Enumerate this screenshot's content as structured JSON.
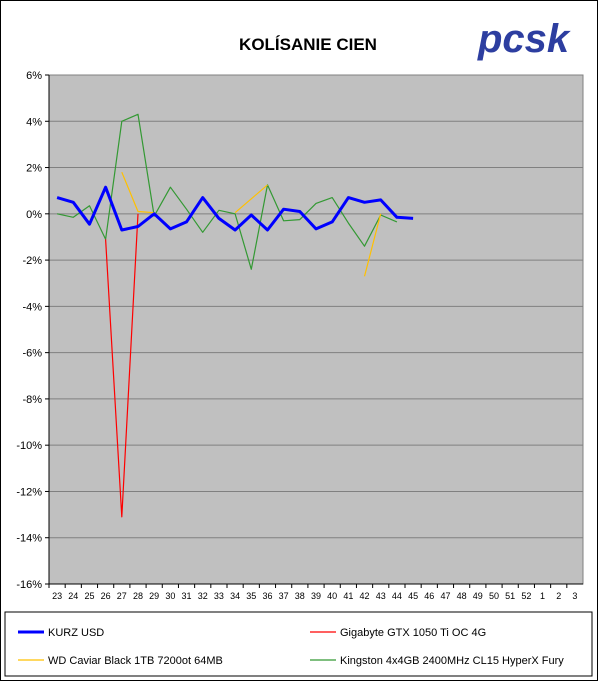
{
  "chart_data": {
    "type": "line",
    "title": "KOLÍSANIE CIEN",
    "xlabel": "",
    "ylabel": "",
    "ylim": [
      -16,
      6
    ],
    "yticks": [
      "6%",
      "4%",
      "2%",
      "0%",
      "-2%",
      "-4%",
      "-6%",
      "-8%",
      "-10%",
      "-12%",
      "-14%",
      "-16%"
    ],
    "grid": true,
    "legend_position": "bottom",
    "categories": [
      "23",
      "24",
      "25",
      "26",
      "27",
      "28",
      "29",
      "30",
      "31",
      "32",
      "33",
      "34",
      "35",
      "36",
      "37",
      "38",
      "39",
      "40",
      "41",
      "42",
      "43",
      "44",
      "45",
      "46",
      "47",
      "48",
      "49",
      "50",
      "51",
      "52",
      "1",
      "2",
      "3"
    ],
    "series": [
      {
        "name": "KURZ USD",
        "color": "#0000ff",
        "values": [
          0.7,
          0.5,
          -0.45,
          1.15,
          -0.7,
          -0.55,
          0.0,
          -0.65,
          -0.35,
          0.7,
          -0.2,
          -0.7,
          -0.05,
          -0.7,
          0.2,
          0.1,
          -0.65,
          -0.35,
          0.7,
          0.5,
          0.6,
          -0.15,
          -0.2,
          null,
          null,
          null,
          null,
          null,
          null,
          null,
          null,
          null,
          null
        ]
      },
      {
        "name": "Gigabyte GTX 1050 Ti OC 4G",
        "color": "#ff0000",
        "values": [
          0.0,
          null,
          null,
          -1.1,
          -13.1,
          0.0,
          null,
          null,
          null,
          null,
          null,
          null,
          null,
          null,
          null,
          null,
          null,
          null,
          null,
          null,
          null,
          null,
          null,
          null,
          null,
          null,
          null,
          null,
          null,
          null,
          null,
          null,
          null
        ]
      },
      {
        "name": "WD Caviar Black 1TB 7200ot 64MB",
        "color": "#ffc000",
        "values": [
          null,
          null,
          null,
          null,
          1.8,
          0.1,
          0.05,
          null,
          null,
          null,
          null,
          0.05,
          0.65,
          1.25,
          null,
          null,
          null,
          null,
          null,
          -2.7,
          0.0,
          null,
          null,
          null,
          null,
          null,
          null,
          null,
          null,
          null,
          null,
          null,
          null
        ]
      },
      {
        "name": "Kingston 4x4GB 2400MHz CL15 HyperX Fury",
        "color": "#339933",
        "values": [
          0.0,
          -0.15,
          0.35,
          -1.1,
          4.0,
          4.3,
          -0.1,
          1.15,
          0.2,
          -0.8,
          0.15,
          0.0,
          -2.4,
          1.25,
          -0.3,
          -0.25,
          0.45,
          0.7,
          -0.4,
          -1.4,
          -0.05,
          -0.35,
          null,
          null,
          null,
          null,
          null,
          null,
          null,
          null,
          null,
          null,
          null
        ]
      }
    ]
  },
  "logo": {
    "text": "pcsk"
  }
}
